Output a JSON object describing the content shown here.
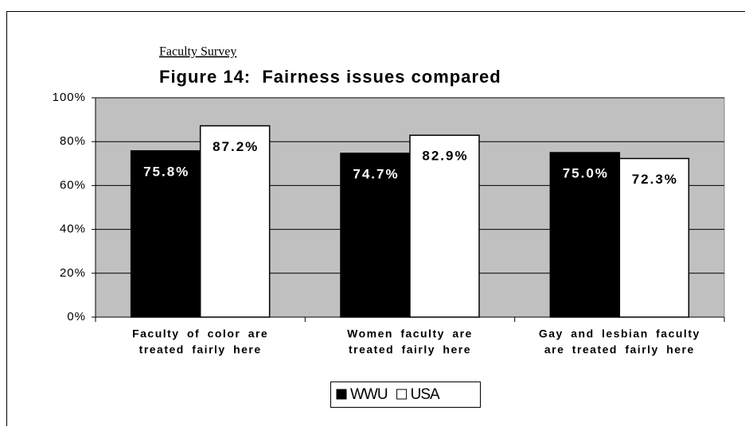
{
  "chart_data": {
    "type": "bar",
    "subtitle": "Faculty Survey",
    "title": "Figure 14:  Fairness issues compared",
    "categories": [
      [
        "Faculty of color are",
        "treated fairly here"
      ],
      [
        "Women faculty are",
        "treated fairly here"
      ],
      [
        "Gay and lesbian faculty",
        "are treated fairly here"
      ]
    ],
    "series": [
      {
        "name": "WWU",
        "color": "#000000",
        "values": [
          75.8,
          74.7,
          75.0
        ],
        "value_labels": [
          "75.8%",
          "74.7%",
          "75.0%"
        ]
      },
      {
        "name": "USA",
        "color": "#ffffff",
        "values": [
          87.2,
          82.9,
          72.3
        ],
        "value_labels": [
          "87.2%",
          "82.9%",
          "72.3%"
        ]
      }
    ],
    "ylim": [
      0,
      100
    ],
    "yticks": [
      {
        "value": 0,
        "label": "0%"
      },
      {
        "value": 20,
        "label": "20%"
      },
      {
        "value": 40,
        "label": "40%"
      },
      {
        "value": 60,
        "label": "60%"
      },
      {
        "value": 80,
        "label": "80%"
      },
      {
        "value": 100,
        "label": "100%"
      }
    ],
    "grid": true,
    "plot_background": "#c0c0c0",
    "legend": "bottom"
  }
}
